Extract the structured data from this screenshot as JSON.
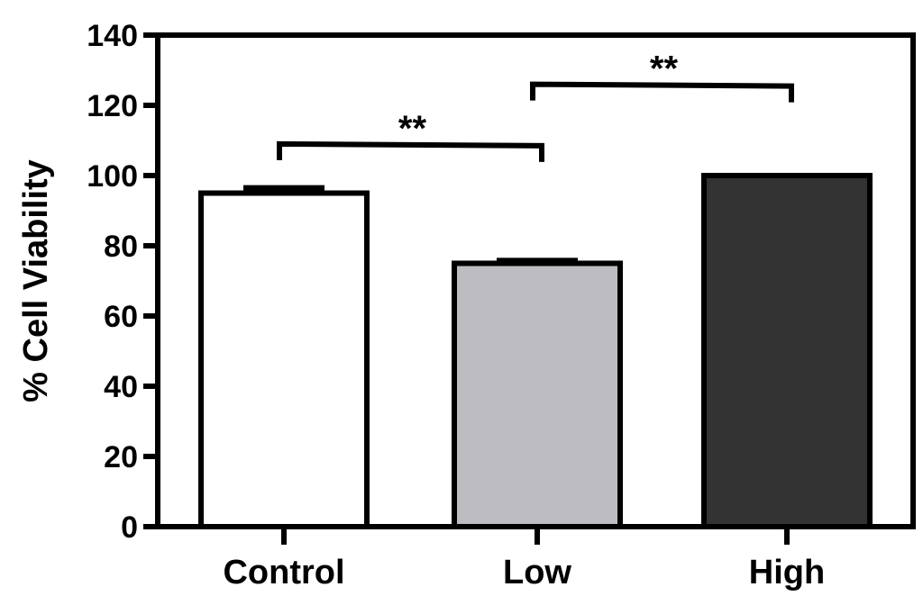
{
  "chart_data": {
    "type": "bar",
    "title": "",
    "xlabel": "",
    "ylabel": "% Cell Viability",
    "ylim": [
      0,
      140
    ],
    "yticks": [
      0,
      20,
      40,
      60,
      80,
      100,
      120,
      140
    ],
    "ytick_labels": [
      "0",
      "20",
      "40",
      "60",
      "80",
      "100",
      "120",
      "140"
    ],
    "categories": [
      "Control",
      "Low",
      "High"
    ],
    "values": [
      95,
      75,
      100
    ],
    "errors": [
      1.5,
      0.8,
      0
    ],
    "bar_colors": [
      "#ffffff",
      "#bdbdc1",
      "#333333"
    ],
    "edge_color": "#000000",
    "grid": false,
    "legend": "none",
    "significance": [
      {
        "from": "Control",
        "to": "Low",
        "label": "**",
        "y": 109
      },
      {
        "from": "Low",
        "to": "High",
        "label": "**",
        "y": 126
      }
    ]
  }
}
